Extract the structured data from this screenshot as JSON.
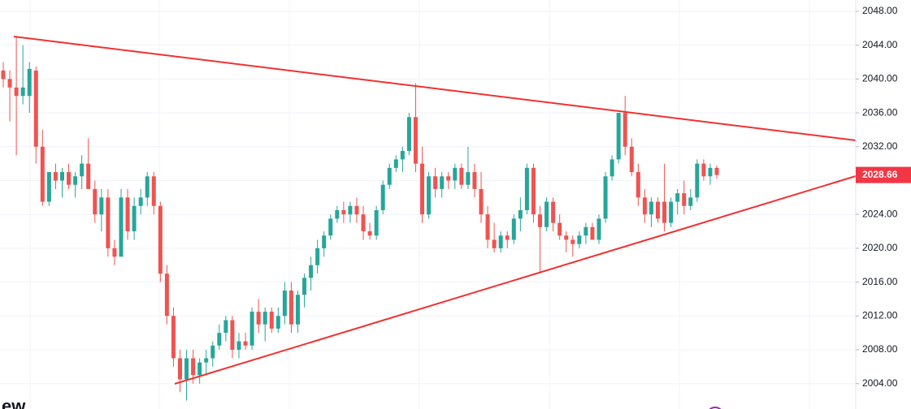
{
  "chart_data": {
    "type": "candlestick",
    "ohlc": [
      [
        2041,
        2042,
        2039,
        2040
      ],
      [
        2040,
        2041,
        2035,
        2039
      ],
      [
        2039,
        2045,
        2031,
        2038
      ],
      [
        2038,
        2044,
        2037,
        2039
      ],
      [
        2038,
        2042,
        2036,
        2041.2
      ],
      [
        2041,
        2041.5,
        2030,
        2032
      ],
      [
        2032,
        2034,
        2025,
        2025.5
      ],
      [
        2025.5,
        2029,
        2025,
        2029
      ],
      [
        2029,
        2030,
        2027,
        2028
      ],
      [
        2028,
        2029.5,
        2026,
        2029
      ],
      [
        2029,
        2030,
        2027,
        2027.5
      ],
      [
        2027.5,
        2029,
        2026,
        2028.5
      ],
      [
        2028.5,
        2031,
        2027,
        2030
      ],
      [
        2030,
        2033,
        2027,
        2027
      ],
      [
        2027,
        2028,
        2023,
        2024
      ],
      [
        2024,
        2027,
        2022,
        2026
      ],
      [
        2026,
        2027,
        2019,
        2020
      ],
      [
        2020,
        2021,
        2018,
        2019
      ],
      [
        2019,
        2027,
        2019,
        2026
      ],
      [
        2026,
        2027,
        2021,
        2022
      ],
      [
        2022,
        2026,
        2021,
        2025
      ],
      [
        2025,
        2027,
        2024,
        2026
      ],
      [
        2026,
        2029,
        2025,
        2028.5
      ],
      [
        2028.5,
        2029,
        2024,
        2025
      ],
      [
        2025,
        2025.5,
        2016,
        2017
      ],
      [
        2017,
        2018,
        2011,
        2012
      ],
      [
        2012,
        2013,
        2006,
        2007
      ],
      [
        2007,
        2008,
        2003,
        2004.5
      ],
      [
        2004.5,
        2008,
        2002,
        2007
      ],
      [
        2007,
        2008,
        2004,
        2005
      ],
      [
        2005,
        2007,
        2004,
        2006.5
      ],
      [
        2006.5,
        2008,
        2005,
        2007
      ],
      [
        2007,
        2009,
        2006,
        2008.5
      ],
      [
        2008.5,
        2011,
        2008,
        2010
      ],
      [
        2010,
        2012,
        2009,
        2011.5
      ],
      [
        2011.5,
        2012,
        2007,
        2008
      ],
      [
        2008,
        2010,
        2007,
        2009
      ],
      [
        2009,
        2010,
        2008,
        2008.5
      ],
      [
        2008.5,
        2013,
        2008,
        2012.5
      ],
      [
        2012.5,
        2014,
        2010,
        2011
      ],
      [
        2011,
        2013,
        2009,
        2012.5
      ],
      [
        2012.5,
        2013,
        2010,
        2010.5
      ],
      [
        2010.5,
        2013,
        2010,
        2012
      ],
      [
        2012,
        2016,
        2011,
        2015
      ],
      [
        2015,
        2016,
        2010,
        2011
      ],
      [
        2011,
        2015,
        2010,
        2014.5
      ],
      [
        2014.5,
        2017,
        2013,
        2016.5
      ],
      [
        2016.5,
        2019,
        2015,
        2018
      ],
      [
        2018,
        2021,
        2017,
        2020
      ],
      [
        2020,
        2022,
        2019,
        2021.5
      ],
      [
        2021.5,
        2024,
        2021,
        2023.5
      ],
      [
        2023.5,
        2025,
        2023,
        2024.5
      ],
      [
        2024.5,
        2025.5,
        2023,
        2024
      ],
      [
        2024,
        2025.5,
        2023,
        2025
      ],
      [
        2025,
        2026,
        2023,
        2024
      ],
      [
        2024,
        2025,
        2021,
        2022
      ],
      [
        2022,
        2023,
        2021,
        2021.5
      ],
      [
        2021.5,
        2025,
        2021,
        2024.5
      ],
      [
        2024.5,
        2028,
        2024,
        2027.5
      ],
      [
        2027.5,
        2030,
        2027,
        2029.5
      ],
      [
        2029.5,
        2031,
        2029,
        2030.5
      ],
      [
        2030.5,
        2032,
        2029,
        2031.5
      ],
      [
        2031.5,
        2036,
        2031,
        2035.5
      ],
      [
        2035.5,
        2039.5,
        2029,
        2030
      ],
      [
        2030,
        2032,
        2023,
        2024
      ],
      [
        2024,
        2029,
        2023.5,
        2028.5
      ],
      [
        2028.5,
        2029.5,
        2026,
        2027
      ],
      [
        2027,
        2029,
        2026,
        2028.5
      ],
      [
        2028.5,
        2029,
        2027,
        2028
      ],
      [
        2028,
        2030,
        2027,
        2029.5
      ],
      [
        2029.5,
        2030,
        2027,
        2027.5
      ],
      [
        2027.5,
        2032,
        2027,
        2029
      ],
      [
        2029,
        2030,
        2026,
        2027
      ],
      [
        2027,
        2029,
        2023,
        2024
      ],
      [
        2024,
        2025,
        2020,
        2021
      ],
      [
        2021,
        2023,
        2019.5,
        2020
      ],
      [
        2020,
        2022,
        2019.5,
        2021.5
      ],
      [
        2021.5,
        2022,
        2020,
        2021
      ],
      [
        2021,
        2024,
        2020.5,
        2023.5
      ],
      [
        2023.5,
        2026,
        2022,
        2024.5
      ],
      [
        2024.5,
        2030,
        2024,
        2029.5
      ],
      [
        2029.5,
        2030,
        2023,
        2024
      ],
      [
        2024,
        2025,
        2017,
        2022.5
      ],
      [
        2022.5,
        2026,
        2022,
        2025.5
      ],
      [
        2025.5,
        2026,
        2022,
        2023
      ],
      [
        2023,
        2024,
        2021,
        2021.5
      ],
      [
        2021.5,
        2022,
        2019.5,
        2021
      ],
      [
        2021,
        2021.5,
        2019,
        2020.5
      ],
      [
        2020.5,
        2022,
        2020,
        2021.5
      ],
      [
        2021.5,
        2023,
        2020.5,
        2022.5
      ],
      [
        2022.5,
        2023,
        2021,
        2021
      ],
      [
        2021,
        2024,
        2020.5,
        2023.5
      ],
      [
        2023.5,
        2029,
        2023,
        2028.5
      ],
      [
        2028.5,
        2031,
        2028,
        2030.5
      ],
      [
        2030.5,
        2036,
        2030,
        2036
      ],
      [
        2036,
        2038,
        2031,
        2032
      ],
      [
        2032,
        2033,
        2028.5,
        2029
      ],
      [
        2029,
        2030,
        2025,
        2026
      ],
      [
        2026,
        2027,
        2023,
        2024
      ],
      [
        2024,
        2026,
        2022.5,
        2025.5
      ],
      [
        2025.5,
        2026,
        2023,
        2023.5
      ],
      [
        2025.5,
        2030,
        2022,
        2023
      ],
      [
        2023,
        2026,
        2022.5,
        2025.5
      ],
      [
        2025.5,
        2027,
        2024,
        2026.5
      ],
      [
        2026.5,
        2028,
        2024,
        2025
      ],
      [
        2025,
        2027,
        2024.5,
        2026
      ],
      [
        2026,
        2030.5,
        2025.5,
        2030
      ],
      [
        2030,
        2030.5,
        2028,
        2028.5
      ],
      [
        2028.5,
        2030,
        2027.5,
        2029.5
      ],
      [
        2029.5,
        2029.8,
        2028.2,
        2028.66
      ]
    ],
    "up_color": "#26a69a",
    "down_color": "#ef5350",
    "ylim": [
      2001,
      2049.34
    ],
    "yticks": [
      {
        "value": 2004,
        "label": "2004.00"
      },
      {
        "value": 2008,
        "label": "2008.00"
      },
      {
        "value": 2012,
        "label": "2012.00"
      },
      {
        "value": 2016,
        "label": "2016.00"
      },
      {
        "value": 2020,
        "label": "2020.00"
      },
      {
        "value": 2024,
        "label": "2024.00"
      },
      {
        "value": 2028,
        "label": "2028.00"
      },
      {
        "value": 2032,
        "label": "2032.00"
      },
      {
        "value": 2036,
        "label": "2036.00"
      },
      {
        "value": 2040,
        "label": "2040.00"
      },
      {
        "value": 2044,
        "label": "2044.00"
      },
      {
        "value": 2048,
        "label": "2048.00"
      }
    ],
    "grid": true,
    "last_price": 2028.66,
    "watermark": "ew"
  }
}
